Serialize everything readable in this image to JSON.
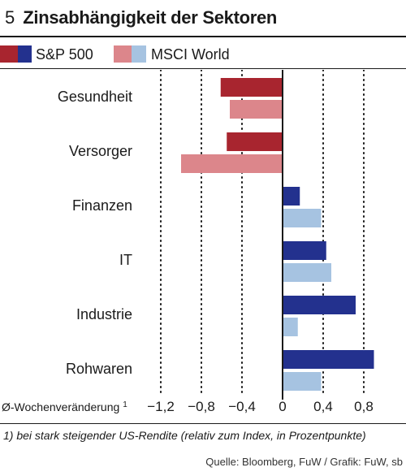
{
  "header": {
    "number": "5",
    "title": "Zinsabhängigkeit der Sektoren"
  },
  "legend": [
    {
      "label": "S&P 500",
      "colors": [
        "#a8252f",
        "#23318e"
      ]
    },
    {
      "label": "MSCI World",
      "colors": [
        "#dc868b",
        "#a6c3e1"
      ]
    }
  ],
  "colors": {
    "sp500_negative": "#a8252f",
    "sp500_positive": "#23318e",
    "msci_negative": "#dc868b",
    "msci_positive": "#a6c3e1",
    "axis": "#1a1a1a",
    "grid": "#1a1a1a"
  },
  "chart_data": {
    "type": "bar",
    "orientation": "horizontal",
    "categories": [
      "Gesundheit",
      "Versorger",
      "Finanzen",
      "IT",
      "Industrie",
      "Rohwaren"
    ],
    "series": [
      {
        "name": "S&P 500",
        "values": [
          -0.61,
          -0.55,
          0.17,
          0.43,
          0.72,
          0.9
        ]
      },
      {
        "name": "MSCI World",
        "values": [
          -0.52,
          -1.0,
          0.38,
          0.48,
          0.15,
          0.38
        ]
      }
    ],
    "xlabel": "Ø-Wochenveränderung",
    "xlabel_footnote_mark": "1",
    "xlim": [
      -1.2,
      1.0
    ],
    "xticks": [
      -1.2,
      -0.8,
      -0.4,
      0,
      0.4,
      0.8
    ],
    "xtick_labels": [
      "−1,2",
      "−0,8",
      "−0,4",
      "0",
      "0,4",
      "0,8"
    ],
    "grid": "vertical dotted",
    "legend_position": "top"
  },
  "footnote": "1) bei stark steigender US-Rendite (relativ zum Index, in Prozentpunkte)",
  "source": "Quelle: Bloomberg, FuW / Grafik: FuW, sb"
}
